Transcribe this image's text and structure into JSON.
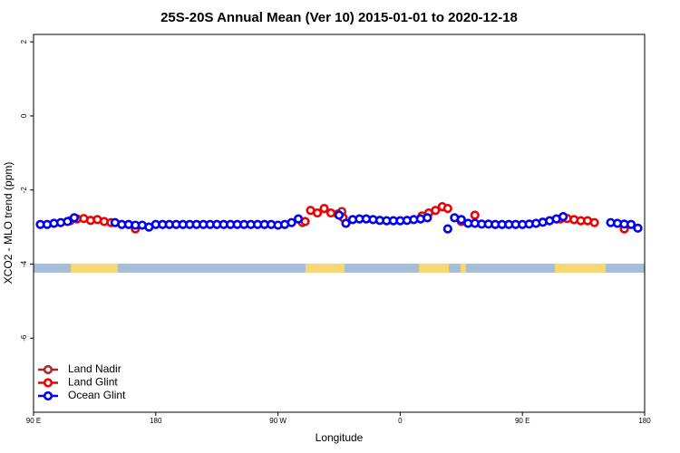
{
  "chart_data": {
    "type": "scatter",
    "title": "25S-20S Annual Mean (Ver 10)   2015-01-01 to 2020-12-18",
    "x_label": "Longitude",
    "y_label": "XCO2 - MLO trend (ppm)",
    "xlim": [
      90,
      540
    ],
    "xticks": [
      {
        "value": 90,
        "label": "90 E"
      },
      {
        "value": 180,
        "label": "180"
      },
      {
        "value": 270,
        "label": "90 W"
      },
      {
        "value": 360,
        "label": "0"
      },
      {
        "value": 450,
        "label": "90 E"
      },
      {
        "value": 540,
        "label": "180"
      }
    ],
    "ylim": [
      -8,
      2.2
    ],
    "yticks": [
      2,
      0,
      -2,
      -4,
      -6
    ],
    "legend": "bottom-left",
    "series": [
      {
        "name": "Land Nadir",
        "color": "#a52a2a",
        "x": [
          288,
          317
        ],
        "values": [
          -2.88,
          -2.58
        ]
      },
      {
        "name": "Land Glint",
        "color": "#ee0000",
        "x": [
          117,
          122,
          127,
          132,
          137,
          142,
          147,
          165,
          290,
          294,
          299,
          304,
          309,
          314,
          318,
          376,
          381,
          386,
          391,
          395,
          405,
          415,
          478,
          483,
          488,
          493,
          498,
          503,
          525
        ],
        "values": [
          -2.83,
          -2.78,
          -2.77,
          -2.82,
          -2.8,
          -2.85,
          -2.88,
          -3.05,
          -2.85,
          -2.55,
          -2.62,
          -2.5,
          -2.62,
          -2.65,
          -2.75,
          -2.7,
          -2.62,
          -2.55,
          -2.45,
          -2.5,
          -2.85,
          -2.68,
          -2.78,
          -2.77,
          -2.8,
          -2.83,
          -2.83,
          -2.88,
          -3.05
        ]
      },
      {
        "name": "Ocean Glint",
        "color": "#0000ee",
        "x": [
          95,
          100,
          105,
          110,
          115,
          120,
          150,
          155,
          160,
          165,
          170,
          175,
          180,
          185,
          190,
          195,
          200,
          205,
          210,
          215,
          220,
          225,
          230,
          235,
          240,
          245,
          250,
          255,
          260,
          265,
          270,
          275,
          280,
          285,
          315,
          320,
          325,
          330,
          335,
          340,
          345,
          350,
          355,
          360,
          365,
          370,
          375,
          380,
          395,
          400,
          405,
          410,
          415,
          420,
          425,
          430,
          435,
          440,
          445,
          450,
          455,
          460,
          465,
          470,
          475,
          480,
          515,
          520,
          525,
          530,
          535
        ],
        "values": [
          -2.93,
          -2.93,
          -2.9,
          -2.88,
          -2.85,
          -2.75,
          -2.88,
          -2.93,
          -2.93,
          -2.95,
          -2.95,
          -3.0,
          -2.93,
          -2.93,
          -2.93,
          -2.93,
          -2.93,
          -2.93,
          -2.93,
          -2.93,
          -2.93,
          -2.93,
          -2.93,
          -2.93,
          -2.93,
          -2.93,
          -2.93,
          -2.93,
          -2.93,
          -2.93,
          -2.95,
          -2.93,
          -2.88,
          -2.78,
          -2.68,
          -2.9,
          -2.8,
          -2.78,
          -2.78,
          -2.8,
          -2.82,
          -2.83,
          -2.83,
          -2.83,
          -2.82,
          -2.8,
          -2.78,
          -2.75,
          -3.05,
          -2.75,
          -2.8,
          -2.9,
          -2.9,
          -2.92,
          -2.92,
          -2.93,
          -2.93,
          -2.93,
          -2.93,
          -2.93,
          -2.92,
          -2.9,
          -2.87,
          -2.83,
          -2.78,
          -2.72,
          -2.88,
          -2.9,
          -2.92,
          -2.93,
          -3.03
        ]
      }
    ]
  }
}
